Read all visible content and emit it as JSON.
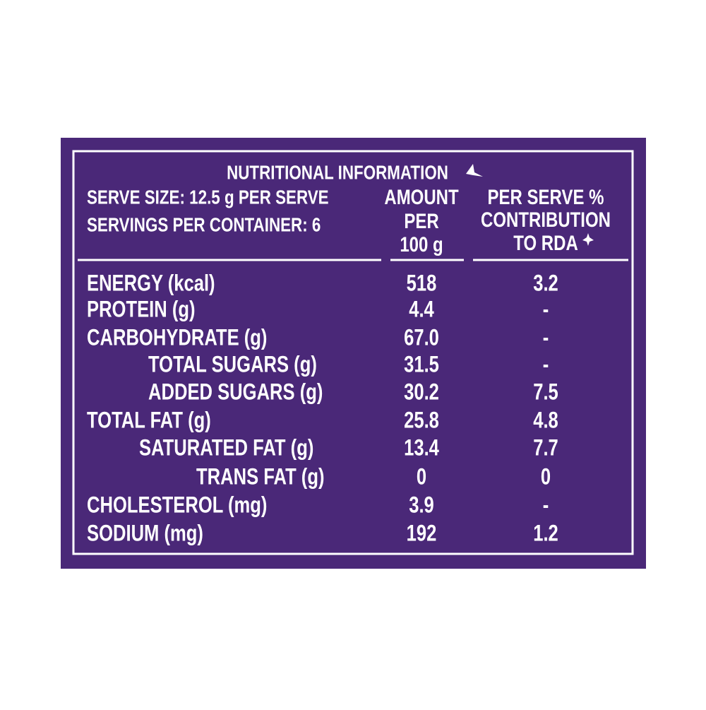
{
  "title": "NUTRITIONAL INFORMATION",
  "serve_info": [
    "SERVE SIZE: 12.5 g PER SERVE",
    "SERVINGS PER CONTAINER: 6"
  ],
  "columns": [
    [
      "AMOUNT",
      "PER",
      "100 g"
    ],
    [
      "PER SERVE %",
      "CONTRIBUTION",
      "TO RDA"
    ]
  ],
  "rows": [
    [
      "ENERGY (kcal)",
      "518",
      "3.2"
    ],
    [
      "PROTEIN (g)",
      "4.4",
      "-"
    ],
    [
      "CARBOHYDRATE (g)",
      "67.0",
      "-"
    ],
    [
      "TOTAL SUGARS (g)",
      "31.5",
      "-"
    ],
    [
      "ADDED SUGARS (g)",
      "30.2",
      "7.5"
    ],
    [
      "TOTAL FAT (g)",
      "25.8",
      "4.8"
    ],
    [
      "SATURATED FAT (g)",
      "13.4",
      "7.7"
    ],
    [
      "TRANS FAT (g)",
      "0",
      "0"
    ],
    [
      "CHOLESTEROL (mg)",
      "3.9",
      "-"
    ],
    [
      "SODIUM  (mg)",
      "192",
      "1.2"
    ]
  ]
}
